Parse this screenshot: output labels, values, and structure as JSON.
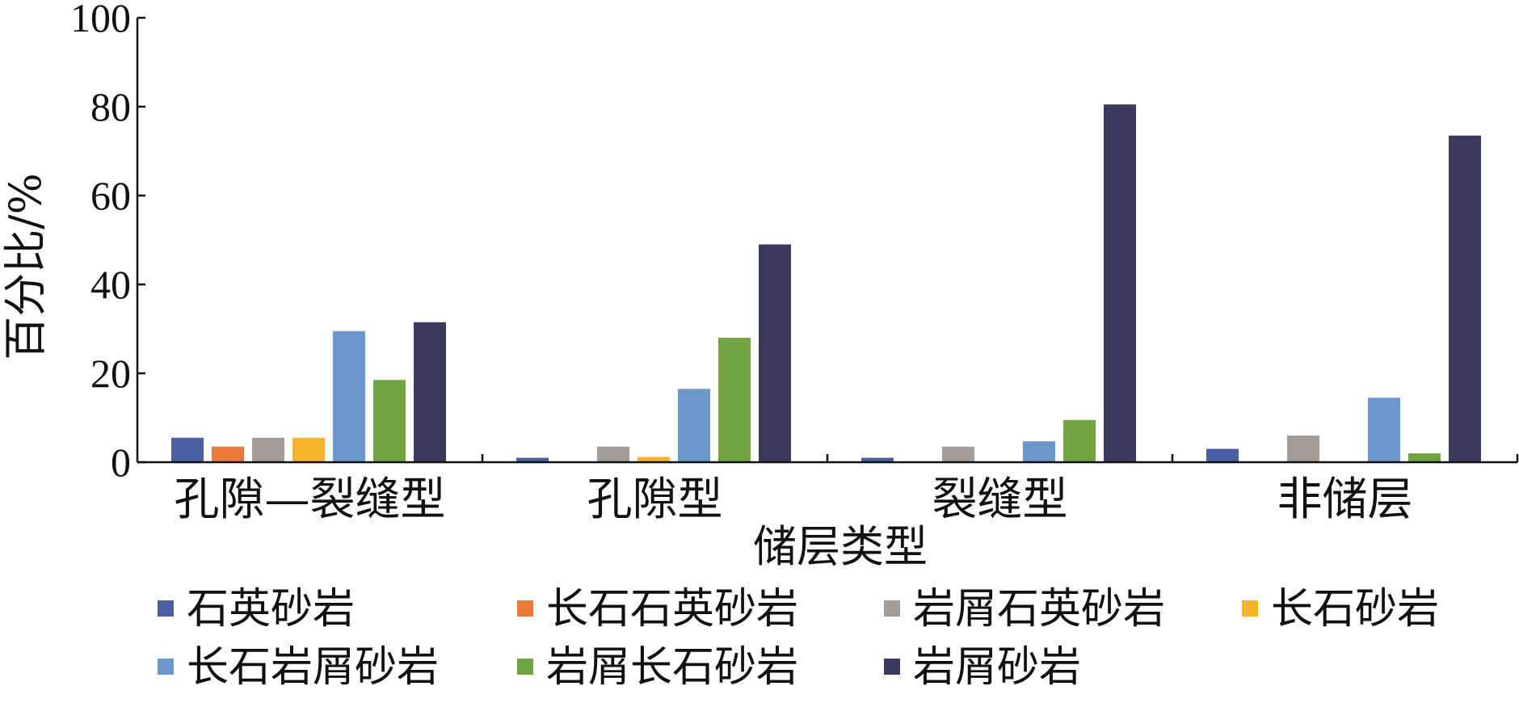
{
  "chart_data": {
    "type": "bar",
    "title": "",
    "xlabel": "储层类型",
    "ylabel": "百分比/%",
    "ylim": [
      0,
      100
    ],
    "yticks": [
      0,
      20,
      40,
      60,
      80,
      100
    ],
    "grid": false,
    "legend_position": "bottom",
    "categories": [
      "孔隙—裂缝型",
      "孔隙型",
      "裂缝型",
      "非储层"
    ],
    "series": [
      {
        "name": "石英砂岩",
        "color": "#4d5fa3",
        "values": [
          5.5,
          1,
          1,
          3
        ]
      },
      {
        "name": "长石石英砂岩",
        "color": "#ec7a3b",
        "values": [
          3.5,
          0,
          0,
          0
        ]
      },
      {
        "name": "岩屑石英砂岩",
        "color": "#a39d9a",
        "values": [
          5.5,
          3.5,
          3.5,
          6
        ]
      },
      {
        "name": "长石砂岩",
        "color": "#f6b42d",
        "values": [
          5.5,
          1.2,
          0,
          0
        ]
      },
      {
        "name": "长石岩屑砂岩",
        "color": "#6b97cd",
        "values": [
          29.5,
          16.5,
          4.7,
          14.5
        ]
      },
      {
        "name": "岩屑长石砂岩",
        "color": "#72a443",
        "values": [
          18.5,
          28,
          9.5,
          2
        ]
      },
      {
        "name": "岩屑砂岩",
        "color": "#3b3a5c",
        "values": [
          31.5,
          49,
          80.5,
          73.5
        ]
      }
    ]
  }
}
